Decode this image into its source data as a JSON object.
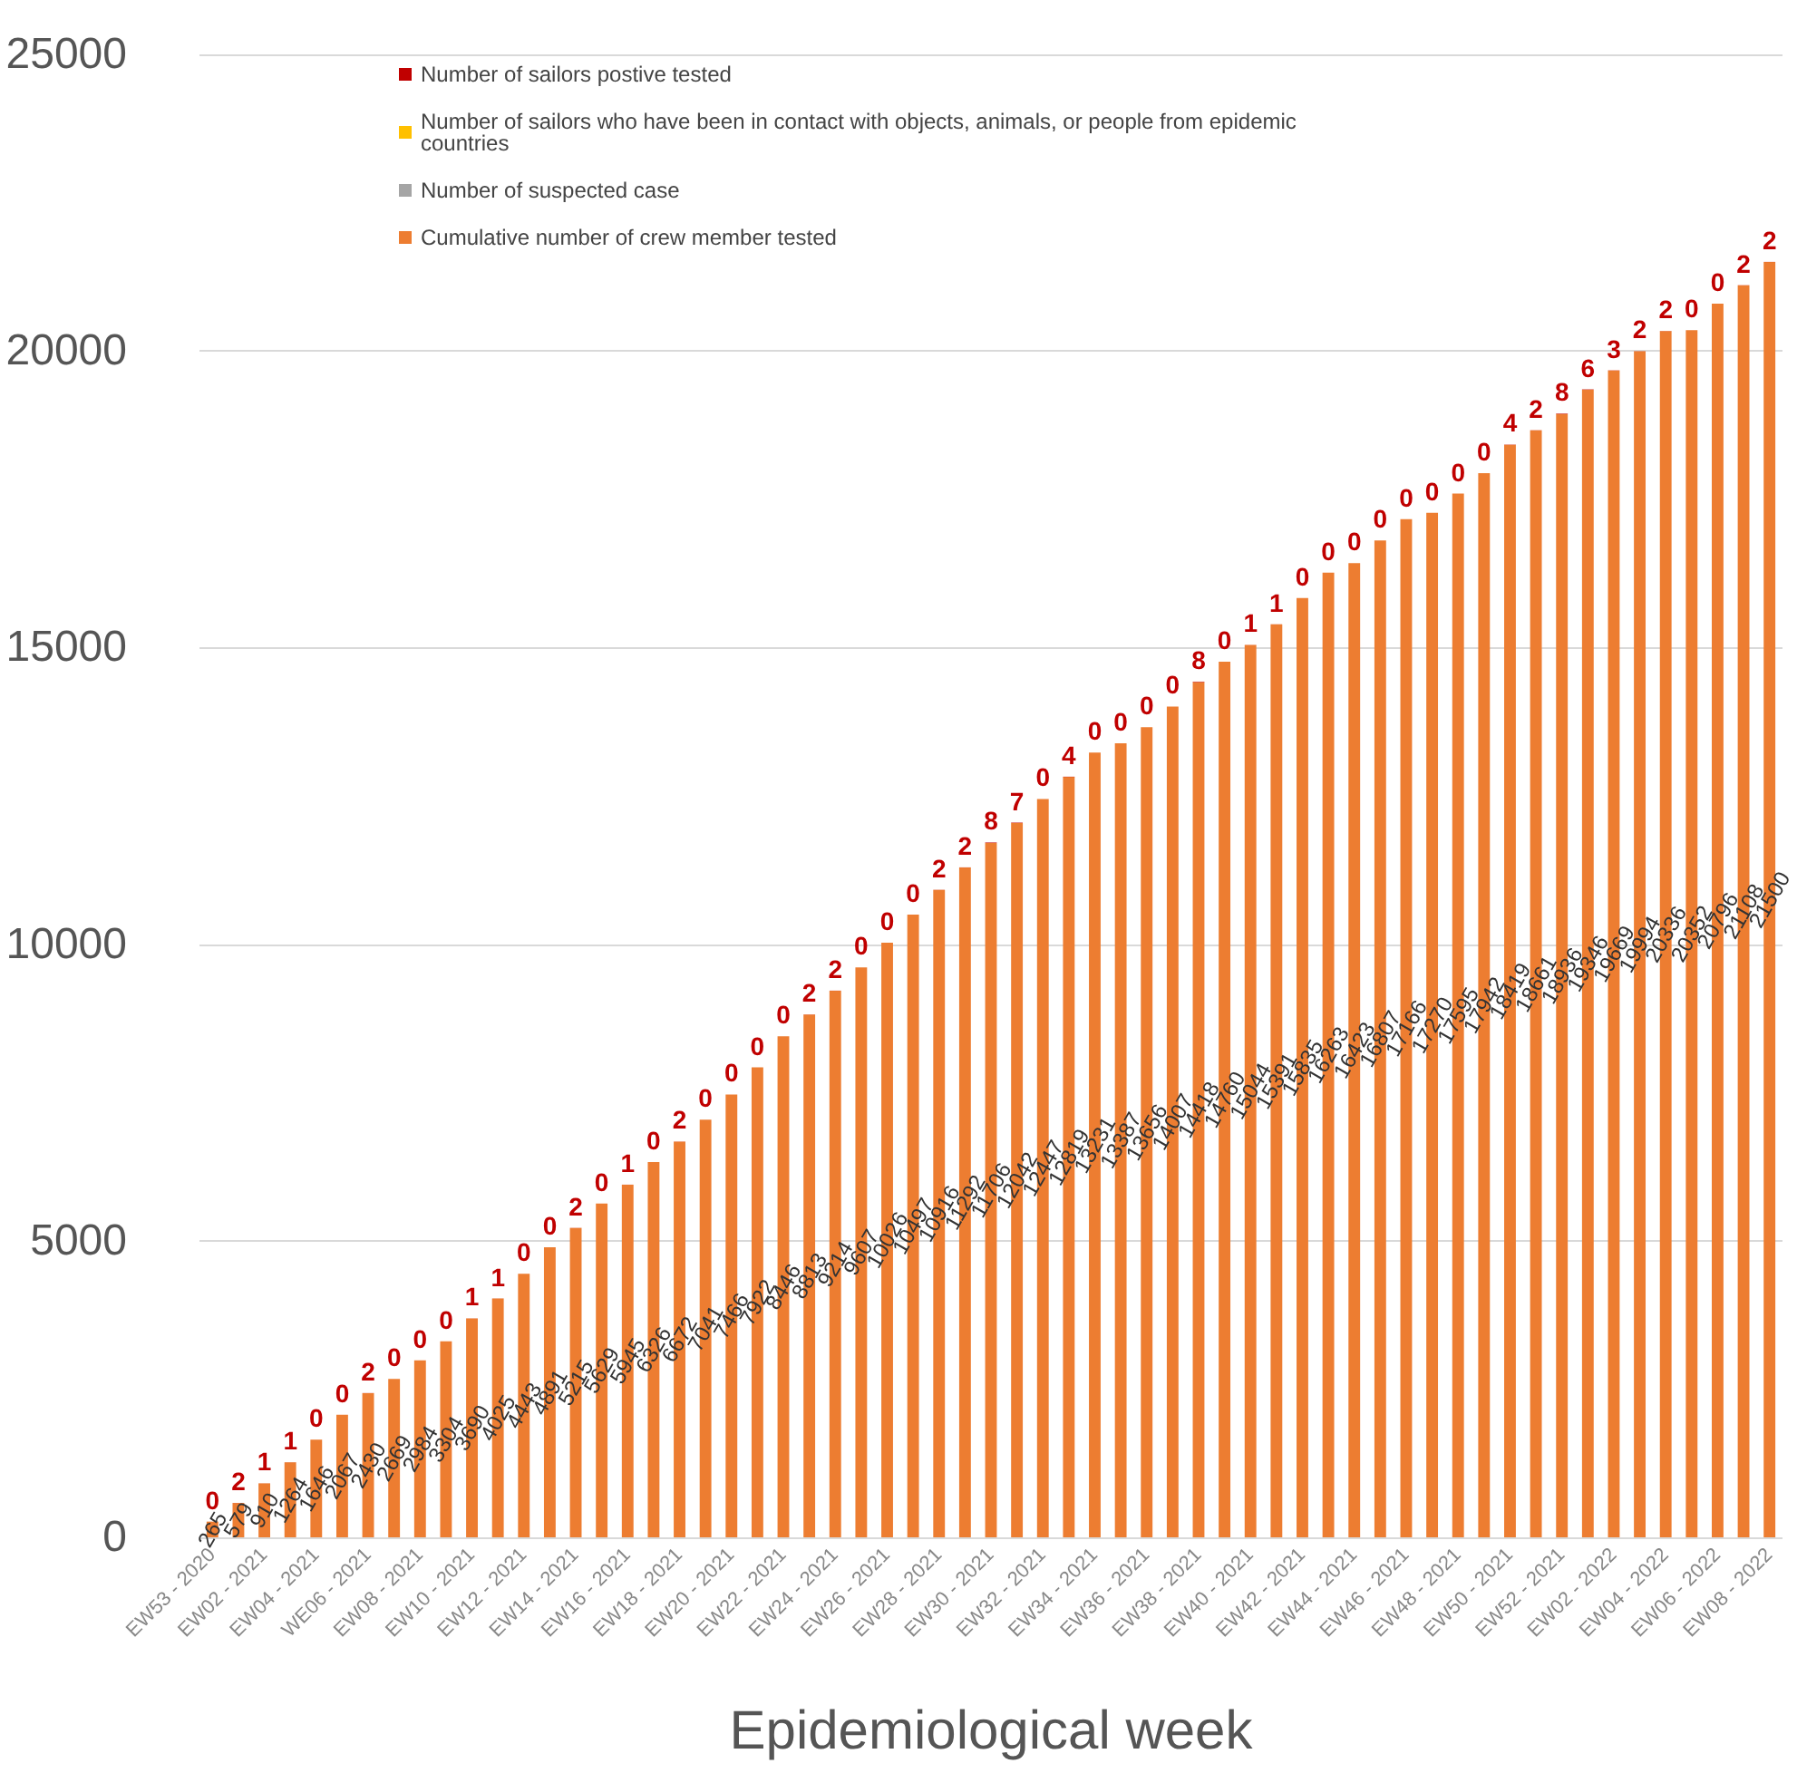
{
  "chart_data": {
    "type": "bar",
    "xlabel": "Epidemiological week",
    "categories": [
      "EW53 - 2020",
      null,
      "EW02 - 2021",
      null,
      "EW04 - 2021",
      null,
      "WE06 - 2021",
      null,
      "EW08 - 2021",
      null,
      "EW10 - 2021",
      null,
      "EW12 - 2021",
      null,
      "EW14 - 2021",
      null,
      "EW16 - 2021",
      null,
      "EW18 - 2021",
      null,
      "EW20 - 2021",
      null,
      "EW22 - 2021",
      null,
      "EW24 - 2021",
      null,
      "EW26 - 2021",
      null,
      "EW28 - 2021",
      null,
      "EW30 - 2021",
      null,
      "EW32 - 2021",
      null,
      "EW34 - 2021",
      null,
      "EW36 - 2021",
      null,
      "EW38 - 2021",
      null,
      "EW40 - 2021",
      null,
      "EW42 - 2021",
      null,
      "EW44 - 2021",
      null,
      "EW46 - 2021",
      null,
      "EW48 - 2021",
      null,
      "EW50 - 2021",
      null,
      "EW52 - 2021",
      null,
      "EW02 - 2022",
      null,
      "EW04 - 2022",
      null,
      "EW06 - 2022",
      null,
      "EW08 - 2022"
    ],
    "series": [
      {
        "name": "Cumulative number of crew member tested",
        "color": "#ed7d31",
        "values": [
          265,
          579,
          910,
          1264,
          1646,
          2067,
          2430,
          2669,
          2984,
          3304,
          3690,
          4025,
          4443,
          4891,
          5215,
          5629,
          5945,
          6326,
          6672,
          7041,
          7466,
          7922,
          8446,
          8813,
          9214,
          9607,
          10026,
          10497,
          10916,
          11292,
          11706,
          12042,
          12447,
          12819,
          13231,
          13387,
          13656,
          14007,
          14418,
          14760,
          15044,
          15391,
          15835,
          16263,
          16423,
          16807,
          17166,
          17270,
          17595,
          17942,
          18419,
          18661,
          18936,
          19346,
          19669,
          19994,
          20336,
          20352,
          20796,
          21108,
          21500
        ]
      },
      {
        "name": "Number of suspected case",
        "color": "#a5a5a5",
        "values": [
          null,
          null,
          null,
          null,
          null,
          null,
          null,
          null,
          null,
          null,
          null,
          null,
          null,
          null,
          null,
          null,
          null,
          null,
          null,
          null,
          null,
          null,
          null,
          null,
          null,
          null,
          null,
          null,
          null,
          null,
          null,
          null,
          null,
          null,
          null,
          null,
          null,
          null,
          null,
          null,
          null,
          null,
          null,
          null,
          null,
          null,
          null,
          null,
          null,
          null,
          null,
          null,
          null,
          null,
          null,
          null,
          null,
          null,
          null,
          null,
          null
        ]
      },
      {
        "name": "Number of sailors who have been in contact with objects, animals, or people from epidemic countries",
        "color": "#ffc000",
        "values": [
          null,
          null,
          null,
          null,
          null,
          null,
          null,
          null,
          null,
          null,
          null,
          null,
          null,
          null,
          null,
          null,
          null,
          null,
          null,
          null,
          null,
          null,
          null,
          null,
          null,
          null,
          null,
          null,
          null,
          null,
          null,
          null,
          null,
          null,
          null,
          null,
          null,
          null,
          null,
          null,
          null,
          null,
          null,
          null,
          null,
          null,
          null,
          null,
          null,
          null,
          null,
          null,
          null,
          null,
          null,
          null,
          null,
          null,
          null,
          null,
          null
        ]
      },
      {
        "name": "Number of sailors postive tested",
        "color": "#c00000",
        "values": [
          0,
          2,
          1,
          1,
          0,
          0,
          2,
          0,
          0,
          0,
          1,
          1,
          0,
          0,
          2,
          0,
          1,
          0,
          2,
          0,
          0,
          0,
          0,
          2,
          2,
          0,
          0,
          0,
          2,
          2,
          8,
          7,
          0,
          4,
          0,
          0,
          0,
          0,
          8,
          0,
          1,
          1,
          0,
          0,
          0,
          0,
          0,
          0,
          0,
          0,
          4,
          2,
          8,
          6,
          3,
          2,
          2,
          0,
          0,
          2,
          2
        ]
      }
    ],
    "stacked": true,
    "data_labels": true,
    "ylim": [
      0,
      25000
    ],
    "yticks": [
      0,
      5000,
      10000,
      15000,
      20000,
      25000
    ],
    "grid": "y",
    "legend": "top left"
  }
}
